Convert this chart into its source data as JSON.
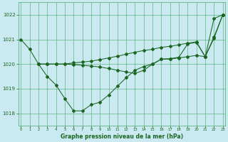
{
  "bg_color": "#cbe9f0",
  "grid_color": "#44aa66",
  "line_color": "#1a6620",
  "title": "Graphe pression niveau de la mer (hPa)",
  "ylabel_ticks": [
    1018,
    1019,
    1020,
    1021,
    1022
  ],
  "xlabel_ticks": [
    0,
    1,
    2,
    3,
    4,
    5,
    6,
    7,
    8,
    9,
    10,
    11,
    12,
    13,
    14,
    15,
    16,
    17,
    18,
    19,
    20,
    21,
    22,
    23
  ],
  "ylim": [
    1017.5,
    1022.5
  ],
  "xlim": [
    -0.3,
    23.3
  ],
  "series1": {
    "x": [
      0,
      1,
      2,
      3,
      4,
      5,
      6,
      7,
      8,
      9,
      10,
      11,
      12,
      13,
      14,
      15,
      16,
      17,
      18,
      19,
      20,
      21,
      22,
      23
    ],
    "y": [
      1021.0,
      1020.6,
      1020.0,
      1019.5,
      1019.15,
      1018.6,
      1018.1,
      1018.1,
      1018.35,
      1018.45,
      1018.75,
      1019.1,
      1019.45,
      1019.75,
      1019.9,
      1020.0,
      1020.2,
      1020.2,
      1020.25,
      1020.3,
      1020.35,
      1020.3,
      1021.85,
      1022.0
    ]
  },
  "series2": {
    "x": [
      2,
      3,
      4,
      5,
      6,
      7,
      8,
      9,
      10,
      11,
      12,
      13,
      14,
      15,
      16,
      17,
      18,
      19,
      20,
      21,
      22,
      23
    ],
    "y": [
      1020.0,
      1020.0,
      1020.0,
      1020.0,
      1020.05,
      1020.08,
      1020.12,
      1020.18,
      1020.25,
      1020.32,
      1020.4,
      1020.48,
      1020.55,
      1020.6,
      1020.68,
      1020.72,
      1020.78,
      1020.85,
      1020.9,
      1020.3,
      1021.1,
      1022.0
    ]
  },
  "series3": {
    "x": [
      2,
      3,
      4,
      5,
      6,
      7,
      8,
      9,
      10,
      11,
      12,
      13,
      14,
      15,
      16,
      17,
      18,
      19,
      20,
      21,
      22,
      23
    ],
    "y": [
      1020.0,
      1020.0,
      1020.0,
      1020.0,
      1019.98,
      1019.95,
      1019.92,
      1019.88,
      1019.82,
      1019.75,
      1019.68,
      1019.62,
      1019.75,
      1020.0,
      1020.2,
      1020.22,
      1020.28,
      1020.82,
      1020.88,
      1020.3,
      1021.05,
      1022.0
    ]
  }
}
